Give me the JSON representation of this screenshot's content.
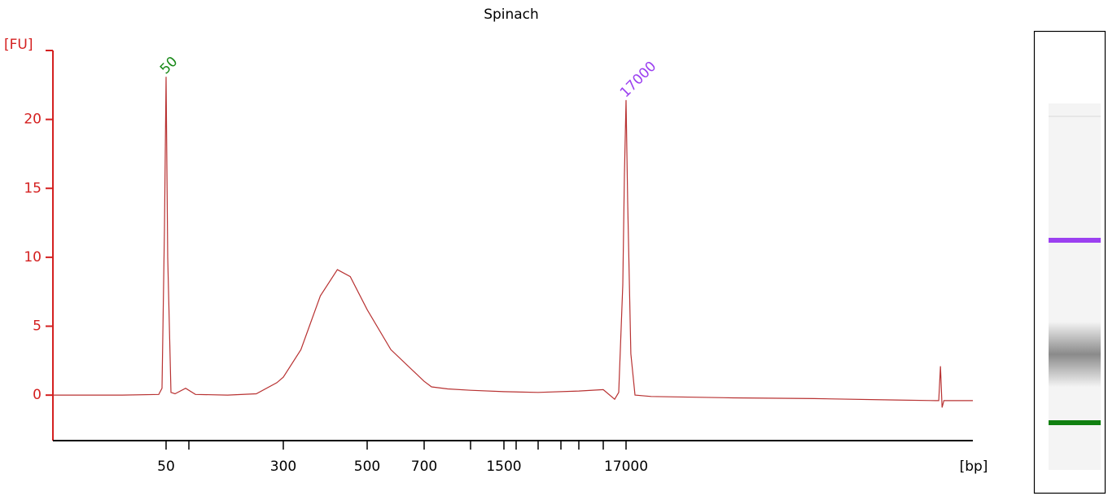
{
  "chart_data": {
    "type": "line",
    "title": "Spinach",
    "y_label": "[FU]",
    "x_label": "[bp]",
    "xscale": "ladder",
    "xlim": [
      12,
      1400000
    ],
    "xticks": [
      50,
      {
        "value": 100,
        "label": null
      },
      300,
      500,
      700,
      {
        "value": 1000,
        "label": null
      },
      1500,
      {
        "value": 2000,
        "label": null
      },
      {
        "value": 3000,
        "label": null
      },
      {
        "value": 5000,
        "label": null
      },
      {
        "value": 7000,
        "label": null
      },
      {
        "value": 10000,
        "label": null
      },
      17000
    ],
    "ylim": [
      -3.3,
      25
    ],
    "yticks": [
      0,
      5,
      10,
      15,
      20
    ],
    "axis_color": "#d42020",
    "series": [
      {
        "color": "#b83232",
        "x": [
          12,
          28.7,
          45.6,
          47.5,
          49,
          50,
          52.5,
          58,
          65.6,
          90.6,
          108,
          157,
          219,
          278,
          300,
          334,
          376,
          417,
          451,
          500,
          575,
          700,
          741,
          838,
          1000,
          1500,
          3000,
          7000,
          10000,
          13030,
          14330,
          15750,
          16370,
          17000,
          17360,
          18080,
          19060,
          23400,
          66200,
          186000,
          524000,
          874000,
          907000,
          927000,
          947000,
          968000,
          1400000
        ],
        "values": [
          0,
          0,
          0.05,
          0.5,
          12,
          23.1,
          10,
          0.2,
          0.1,
          0.5,
          0.05,
          0,
          0.1,
          0.9,
          1.3,
          3.3,
          7.2,
          9.1,
          8.6,
          6.2,
          3.3,
          1.0,
          0.6,
          0.45,
          0.35,
          0.25,
          0.2,
          0.3,
          0.4,
          -0.3,
          0.2,
          8,
          16,
          21.4,
          14,
          3,
          0,
          -0.1,
          -0.2,
          -0.25,
          -0.35,
          -0.4,
          -0.4,
          2.1,
          -0.9,
          -0.4,
          -0.4
        ]
      }
    ],
    "annotations": [
      {
        "text": "50",
        "x": 50,
        "color": "#1a8a1a"
      },
      {
        "text": "17000",
        "x": 17000,
        "color": "#9b40f0"
      }
    ]
  }
}
